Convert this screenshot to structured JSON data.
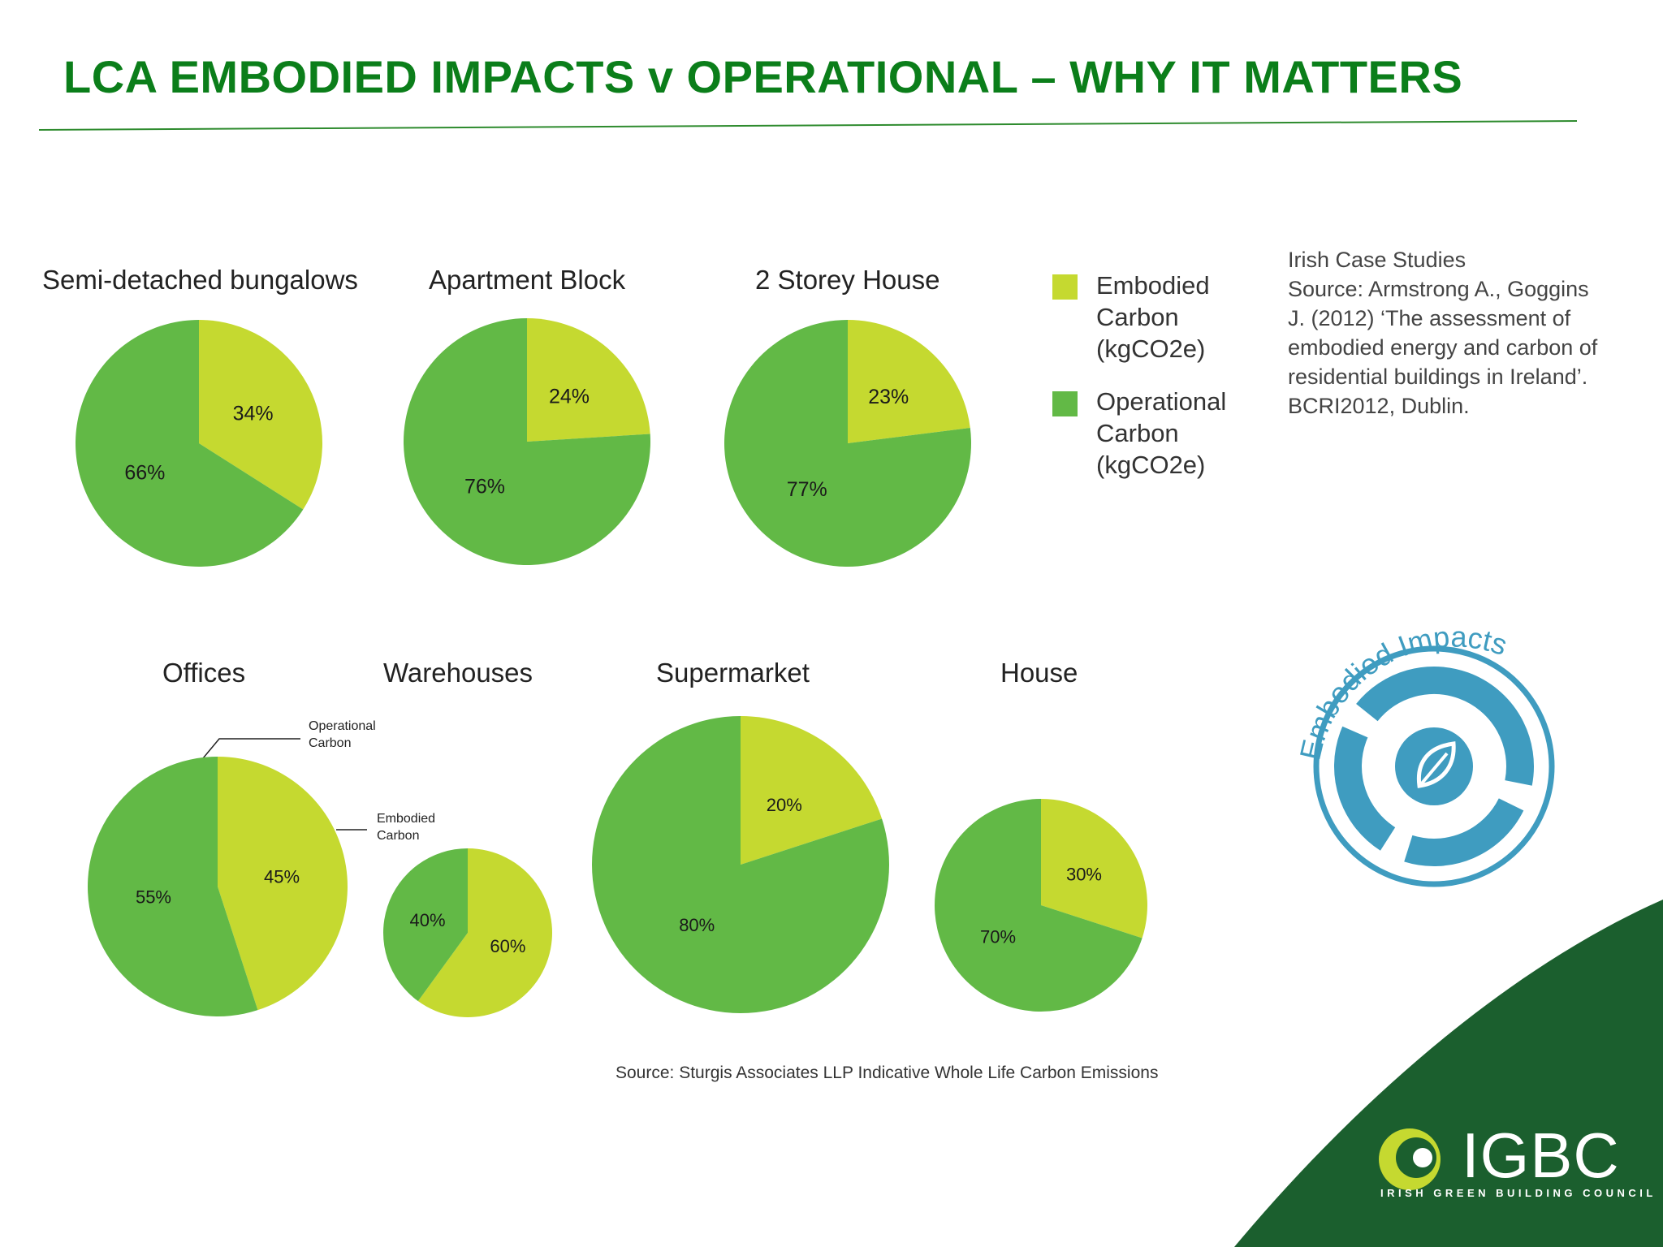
{
  "slide": {
    "title": "LCA EMBODIED IMPACTS v OPERATIONAL – WHY IT MATTERS",
    "source_note": "Source: Sturgis Associates LLP Indicative Whole Life Carbon Emissions",
    "citation": "Irish Case Studies\nSource: Armstrong A., Goggins\nJ. (2012) ‘The assessment of\nembodied energy and carbon of\nresidential buildings in Ireland’.\nBCRI2012, Dublin.",
    "badge_text": "Embodied Impacts",
    "logo": {
      "name": "IGBC",
      "tagline": "IRISH GREEN BUILDING COUNCIL"
    },
    "callouts": {
      "operational": "Operational\nCarbon",
      "embodied": "Embodied\nCarbon"
    }
  },
  "legend": [
    {
      "label": "Embodied\nCarbon\n(kgCO2e)",
      "color": "#c5d930"
    },
    {
      "label": "Operational\nCarbon\n(kgCO2e)",
      "color": "#62b946"
    }
  ],
  "colors": {
    "embodied": "#c5d930",
    "operational": "#62b946",
    "title": "#0b7e1a",
    "rule": "#2e8b2e",
    "dark_green": "#1b5f2e",
    "badge_blue": "#3f9cc0"
  },
  "chart_data": [
    {
      "type": "pie",
      "title": "Semi-detached bungalows",
      "series": [
        {
          "name": "Embodied",
          "value": 34,
          "label": "34%"
        },
        {
          "name": "Operational",
          "value": 66,
          "label": "66%"
        }
      ]
    },
    {
      "type": "pie",
      "title": "Apartment Block",
      "series": [
        {
          "name": "Embodied",
          "value": 24,
          "label": "24%"
        },
        {
          "name": "Operational",
          "value": 76,
          "label": "76%"
        }
      ]
    },
    {
      "type": "pie",
      "title": "2 Storey House",
      "series": [
        {
          "name": "Embodied",
          "value": 23,
          "label": "23%"
        },
        {
          "name": "Operational",
          "value": 77,
          "label": "77%"
        }
      ]
    },
    {
      "type": "pie",
      "title": "Offices",
      "series": [
        {
          "name": "Embodied",
          "value": 45,
          "label": "45%"
        },
        {
          "name": "Operational",
          "value": 55,
          "label": "55%"
        }
      ]
    },
    {
      "type": "pie",
      "title": "Warehouses",
      "series": [
        {
          "name": "Embodied",
          "value": 60,
          "label": "60%"
        },
        {
          "name": "Operational",
          "value": 40,
          "label": "40%"
        }
      ]
    },
    {
      "type": "pie",
      "title": "Supermarket",
      "series": [
        {
          "name": "Embodied",
          "value": 20,
          "label": "20%"
        },
        {
          "name": "Operational",
          "value": 80,
          "label": "80%"
        }
      ]
    },
    {
      "type": "pie",
      "title": "House",
      "series": [
        {
          "name": "Embodied",
          "value": 30,
          "label": "30%"
        },
        {
          "name": "Operational",
          "value": 70,
          "label": "70%"
        }
      ]
    }
  ]
}
